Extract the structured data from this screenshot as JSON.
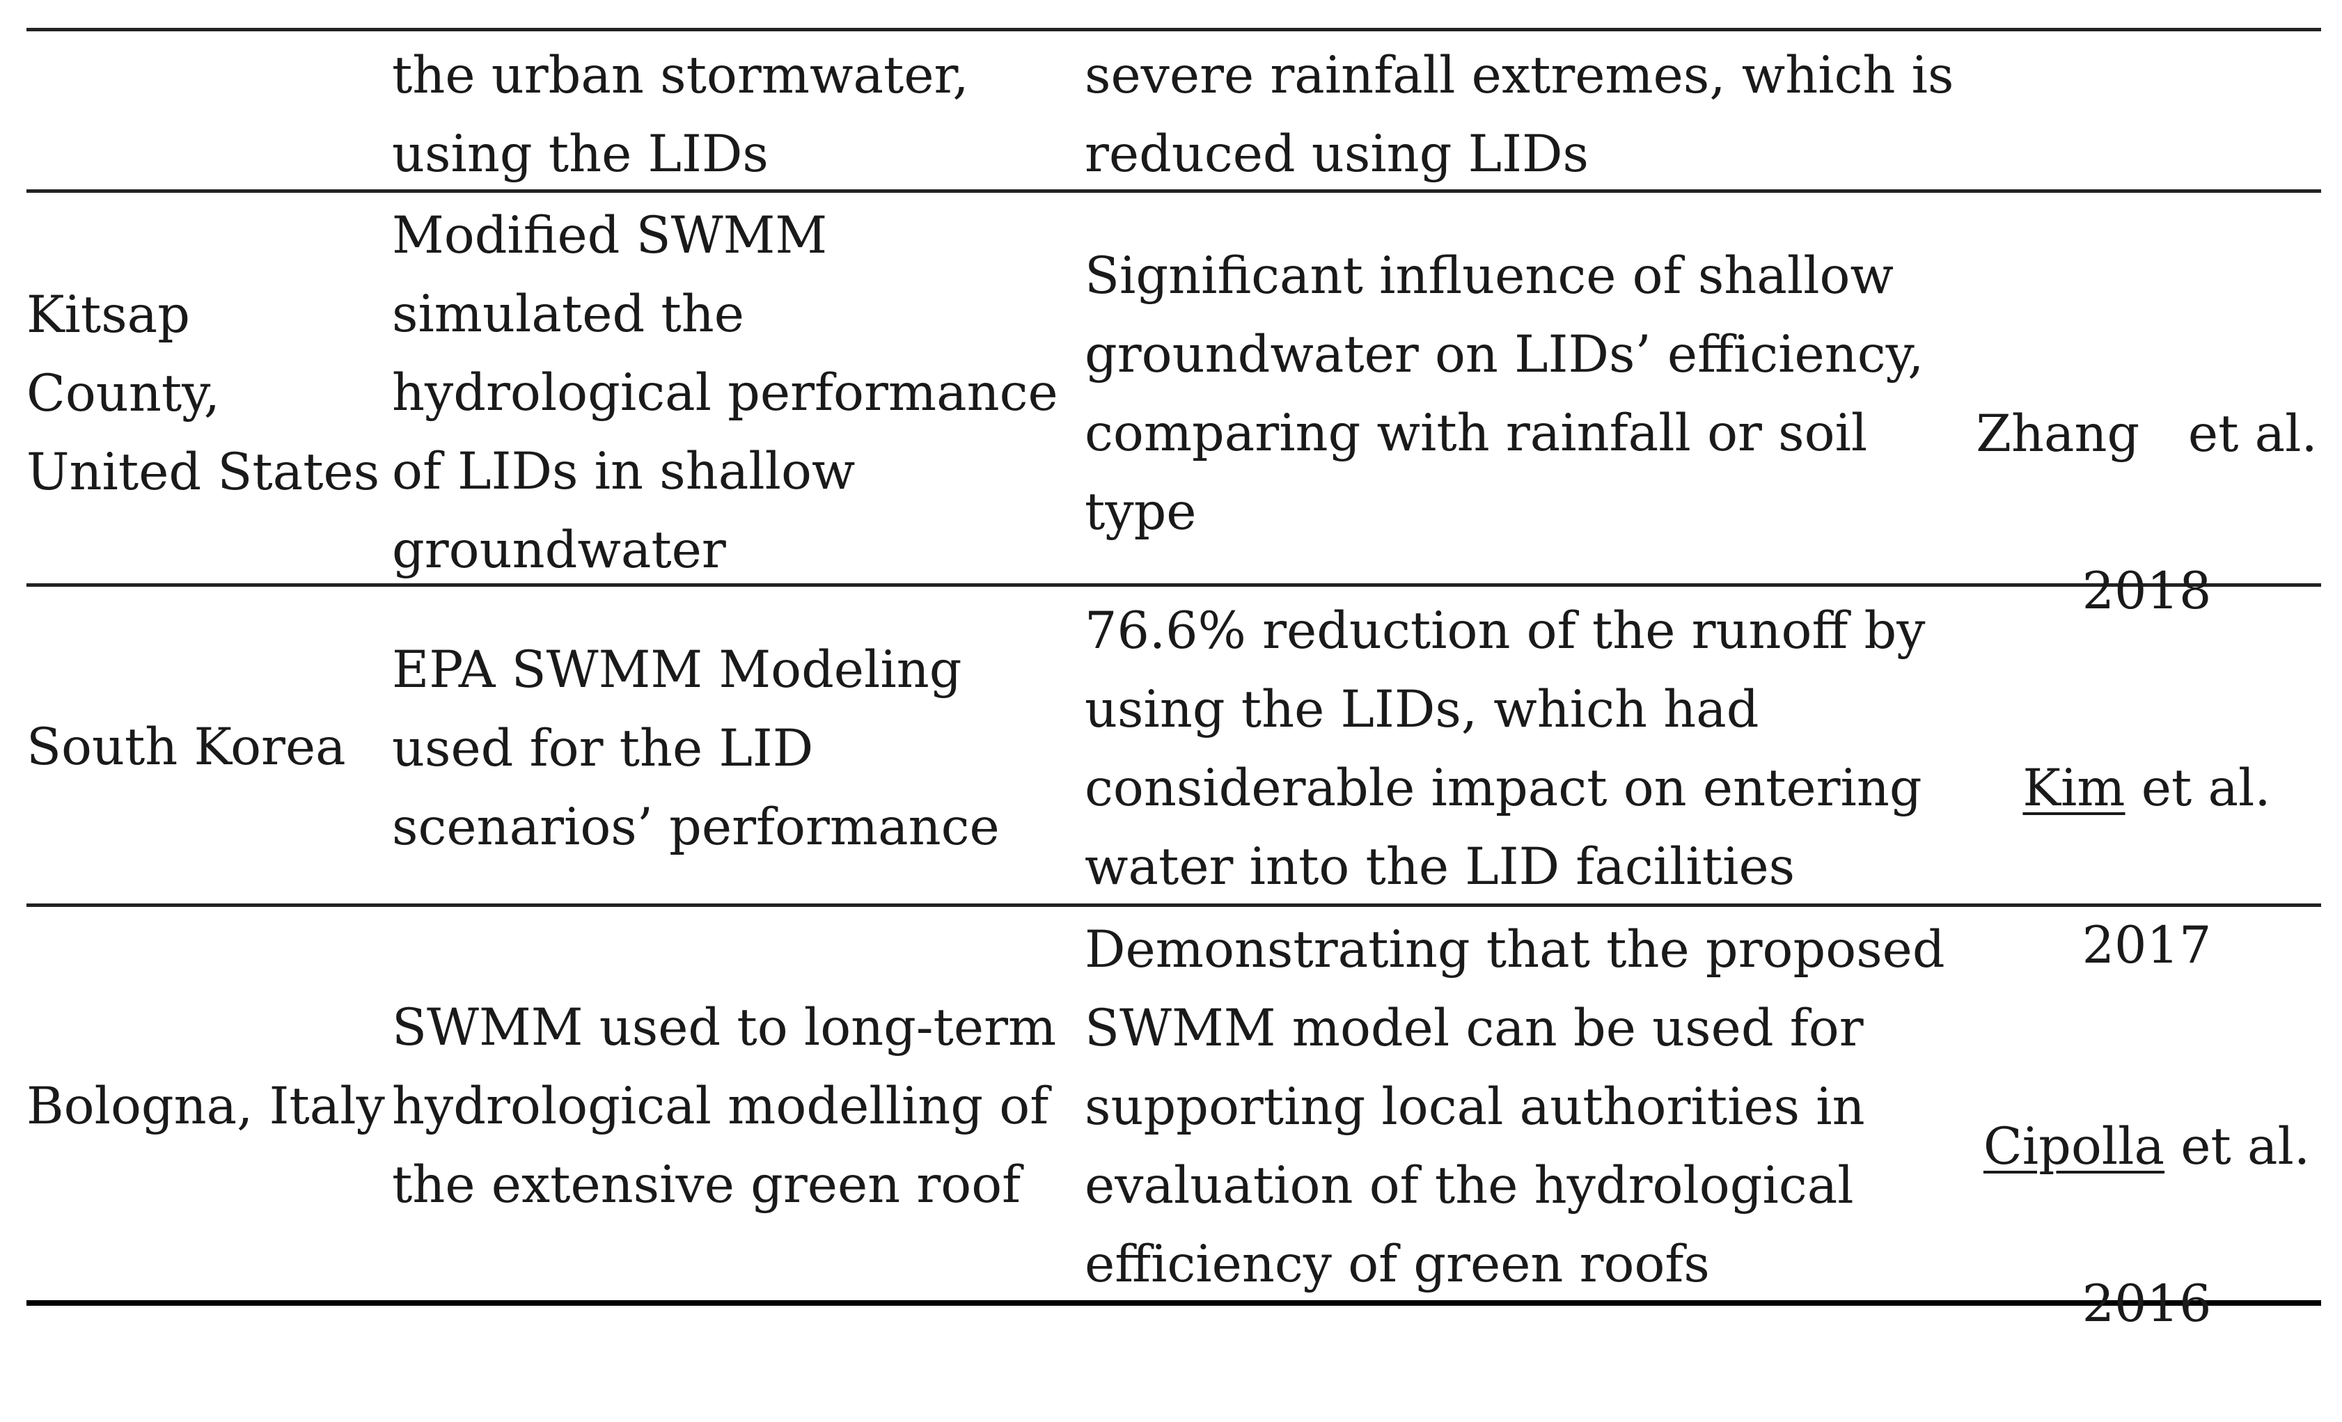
{
  "table": {
    "rows": [
      {
        "location": "",
        "method": "the urban stormwater,\nusing the LIDs",
        "result": "severe rainfall extremes, which is\nreduced using LIDs",
        "author": "",
        "ref_tail": "",
        "year": ""
      },
      {
        "location": "Kitsap\nCounty,\nUnited States",
        "method": "Modified SWMM\nsimulated the\nhydrological performance\nof LIDs in shallow\ngroundwater",
        "result": "Significant influence of shallow\ngroundwater on LIDs’ efficiency,\ncomparing with rainfall or soil\ntype",
        "author": "Zhang",
        "ref_tail": "   et al.",
        "year": "2018"
      },
      {
        "location": "South Korea",
        "method": "EPA SWMM Modeling\nused for the LID\nscenarios’ performance",
        "result": "76.6% reduction of the runoff by\nusing the LIDs, which had\nconsiderable impact on entering\nwater into the LID facilities",
        "author": "Kim",
        "ref_tail": " et al.",
        "year": "2017"
      },
      {
        "location": "Bologna, Italy",
        "method": "SWMM used to long-term\nhydrological modelling of\nthe extensive green roof",
        "result": "Demonstrating that the proposed\nSWMM model can be used for\nsupporting local authorities in\nevaluation of the hydrological\nefficiency of green roofs",
        "author": "Cipolla",
        "ref_tail": " et al.",
        "year": "2016"
      }
    ]
  }
}
